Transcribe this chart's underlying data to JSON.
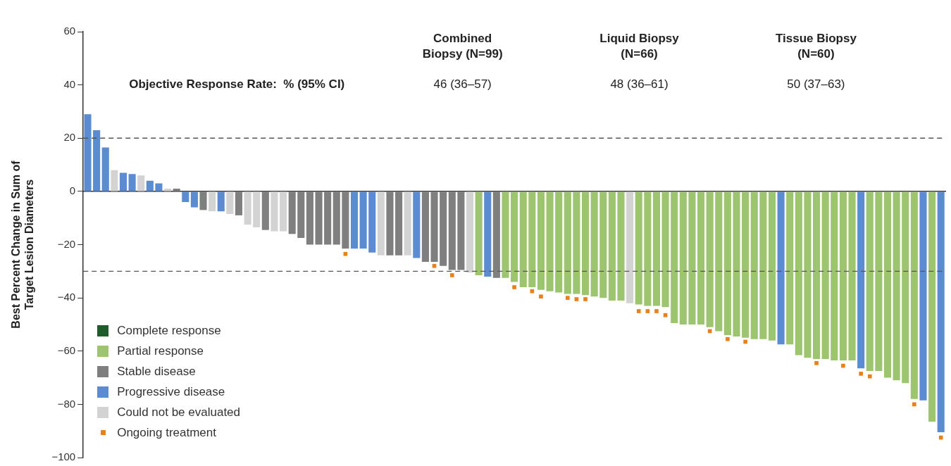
{
  "chart_data": {
    "type": "bar",
    "stacked": true,
    "ylabel": "Best Percent Change in Sum of Target Lesion Diameters",
    "tick_labels": "y",
    "grid": false,
    "legend": "bottom left",
    "categories": [
      null,
      null,
      null,
      null,
      null,
      null,
      null,
      null,
      null,
      null,
      null,
      null,
      null,
      null,
      null,
      null,
      null,
      null,
      null,
      null,
      null,
      null,
      null,
      null,
      null,
      null,
      null,
      null,
      null,
      null,
      null,
      null,
      null,
      null,
      null,
      null,
      null,
      null,
      null,
      null,
      null,
      null,
      null,
      null,
      null,
      null,
      null,
      null,
      null,
      null,
      null,
      null,
      null,
      null,
      null,
      null,
      null,
      null,
      null,
      null,
      null,
      null,
      null,
      null,
      null,
      null,
      null,
      null,
      null,
      null,
      null,
      null,
      null,
      null,
      null,
      null,
      null,
      null,
      null,
      null,
      null,
      null,
      null,
      null,
      null,
      null,
      null,
      null,
      null,
      null,
      null,
      null,
      null,
      null,
      null,
      null,
      null
    ],
    "ylim": [
      -100,
      60
    ],
    "yticks": [
      -100,
      -80,
      -60,
      -40,
      -20,
      0,
      20,
      40,
      60
    ],
    "series": [
      {
        "name": "Complete response",
        "color": "#1f5c2b",
        "values": [
          null,
          null,
          null,
          null,
          null,
          null,
          null,
          null,
          null,
          null,
          null,
          null,
          null,
          null,
          null,
          null,
          null,
          null,
          null,
          null,
          null,
          null,
          null,
          null,
          null,
          null,
          null,
          null,
          null,
          null,
          null,
          null,
          null,
          null,
          null,
          null,
          null,
          null,
          null,
          null,
          null,
          null,
          null,
          null,
          null,
          null,
          null,
          null,
          null,
          null,
          null,
          null,
          null,
          null,
          null,
          null,
          null,
          null,
          null,
          null,
          null,
          null,
          null,
          null,
          null,
          null,
          null,
          null,
          null,
          null,
          null,
          null,
          null,
          null,
          null,
          null,
          null,
          null,
          null,
          null,
          null,
          null,
          null,
          null,
          null,
          null,
          null,
          null,
          null,
          null,
          null,
          null,
          null,
          null,
          null,
          null,
          null
        ]
      },
      {
        "name": "Partial response",
        "color": "#9dc46f",
        "values": [
          null,
          null,
          null,
          null,
          null,
          null,
          null,
          null,
          null,
          null,
          null,
          null,
          null,
          null,
          null,
          null,
          null,
          null,
          null,
          null,
          null,
          null,
          null,
          null,
          null,
          null,
          null,
          null,
          null,
          null,
          null,
          null,
          null,
          null,
          null,
          null,
          null,
          null,
          null,
          null,
          null,
          null,
          null,
          null,
          -31.5,
          null,
          null,
          -32.5,
          -34,
          -36,
          -36,
          -37,
          -37.5,
          -38,
          -38.5,
          -38.5,
          -39,
          -39.5,
          -40,
          -41,
          -41,
          null,
          -42.5,
          -43,
          -43,
          -43.5,
          -49.5,
          -50,
          -50,
          -50,
          -51,
          -52.5,
          -54,
          -54.5,
          -55,
          -55.5,
          -55.5,
          -56,
          null,
          -57.5,
          -61.5,
          -62.5,
          -63,
          -63,
          -63.5,
          -63.5,
          -63.5,
          null,
          -67.5,
          -67.5,
          -70,
          -71,
          -72,
          -78,
          null,
          -86.5,
          null
        ]
      },
      {
        "name": "Stable disease",
        "color": "#7f7f7f",
        "values": [
          null,
          null,
          null,
          null,
          null,
          null,
          null,
          null,
          null,
          null,
          1,
          null,
          null,
          -7,
          null,
          null,
          null,
          -9,
          null,
          null,
          -14.5,
          null,
          null,
          -16,
          -17.5,
          -20,
          -20,
          -20,
          -20,
          -21.5,
          null,
          null,
          null,
          null,
          -24,
          -24,
          null,
          null,
          -26.5,
          -26.5,
          -28,
          -29.5,
          -29.5,
          null,
          null,
          null,
          -32.5,
          null,
          null,
          null,
          null,
          null,
          null,
          null,
          null,
          null,
          null,
          null,
          null,
          null,
          null,
          null,
          null,
          null,
          null,
          null,
          null,
          null,
          null,
          null,
          null,
          null,
          null,
          null,
          null,
          null,
          null,
          null,
          null,
          null,
          null,
          null,
          null,
          null,
          null,
          null,
          null,
          null,
          null,
          null,
          null,
          null,
          null,
          null,
          null,
          null,
          null
        ]
      },
      {
        "name": "Progressive disease",
        "color": "#5b8bd0",
        "values": [
          29,
          23,
          16.5,
          null,
          7,
          6.5,
          null,
          4,
          3,
          null,
          null,
          -4,
          -6,
          null,
          null,
          -7.5,
          null,
          null,
          null,
          null,
          null,
          null,
          null,
          null,
          null,
          null,
          null,
          null,
          null,
          null,
          -21.5,
          -21.5,
          -23,
          null,
          null,
          null,
          null,
          -25,
          null,
          null,
          null,
          null,
          null,
          null,
          null,
          -32,
          null,
          null,
          null,
          null,
          null,
          null,
          null,
          null,
          null,
          null,
          null,
          null,
          null,
          null,
          null,
          null,
          null,
          null,
          null,
          null,
          null,
          null,
          null,
          null,
          null,
          null,
          null,
          null,
          null,
          null,
          null,
          null,
          -57.5,
          null,
          null,
          null,
          null,
          null,
          null,
          null,
          null,
          -66.5,
          null,
          null,
          null,
          null,
          null,
          null,
          -78.5,
          null,
          -90.5
        ]
      },
      {
        "name": "Could not be evaluated",
        "color": "#d3d3d3",
        "values": [
          null,
          null,
          null,
          8,
          null,
          null,
          6,
          null,
          null,
          1,
          null,
          null,
          null,
          null,
          -7.5,
          null,
          -8.5,
          null,
          -12.5,
          -13.5,
          null,
          -15,
          -15,
          null,
          null,
          null,
          null,
          null,
          null,
          null,
          null,
          null,
          null,
          -24,
          null,
          null,
          -24,
          null,
          null,
          null,
          null,
          null,
          null,
          -30.5,
          null,
          null,
          null,
          null,
          null,
          null,
          null,
          null,
          null,
          null,
          null,
          null,
          null,
          null,
          null,
          null,
          null,
          -42,
          null,
          null,
          null,
          null,
          null,
          null,
          null,
          null,
          null,
          null,
          null,
          null,
          null,
          null,
          null,
          null,
          null,
          null,
          null,
          null,
          null,
          null,
          null,
          null,
          null,
          null,
          null,
          null,
          null,
          null,
          null,
          null,
          null,
          null,
          null
        ]
      },
      {
        "name": "Ongoing treatment",
        "type": "scatter",
        "marker": "square",
        "color": "#e8801c",
        "values": [
          null,
          null,
          null,
          null,
          null,
          null,
          null,
          null,
          null,
          null,
          null,
          null,
          null,
          null,
          null,
          null,
          null,
          null,
          null,
          null,
          null,
          null,
          null,
          null,
          null,
          null,
          null,
          null,
          null,
          -23.5,
          null,
          null,
          null,
          null,
          null,
          null,
          null,
          null,
          null,
          -28,
          null,
          -31.5,
          null,
          null,
          null,
          null,
          null,
          null,
          -36,
          null,
          -37.5,
          -39.5,
          null,
          null,
          -40,
          -40.5,
          -40.5,
          null,
          null,
          null,
          null,
          null,
          -45,
          -45,
          -45,
          -46.5,
          null,
          null,
          null,
          null,
          -52.5,
          null,
          -55.5,
          null,
          -56.5,
          null,
          null,
          null,
          null,
          null,
          null,
          null,
          -64.5,
          null,
          null,
          -65.5,
          null,
          -68.5,
          -69.5,
          null,
          null,
          null,
          null,
          -80,
          null,
          null,
          -92.5
        ]
      }
    ],
    "ref_lines": [
      {
        "axis": "y",
        "value": 20,
        "line_style": "dashed",
        "color": "#555555"
      },
      {
        "axis": "y",
        "value": -30,
        "line_style": "dashed",
        "color": "#555555"
      }
    ],
    "annotations": [
      "Objective Response Rate:  % (95% CI)",
      "Combined Biopsy (N=99)",
      "46 (36–57)",
      "Liquid Biopsy (N=66)",
      "48 (36–61)",
      "Tissue Biopsy (N=60)",
      "50 (37–63)"
    ]
  }
}
